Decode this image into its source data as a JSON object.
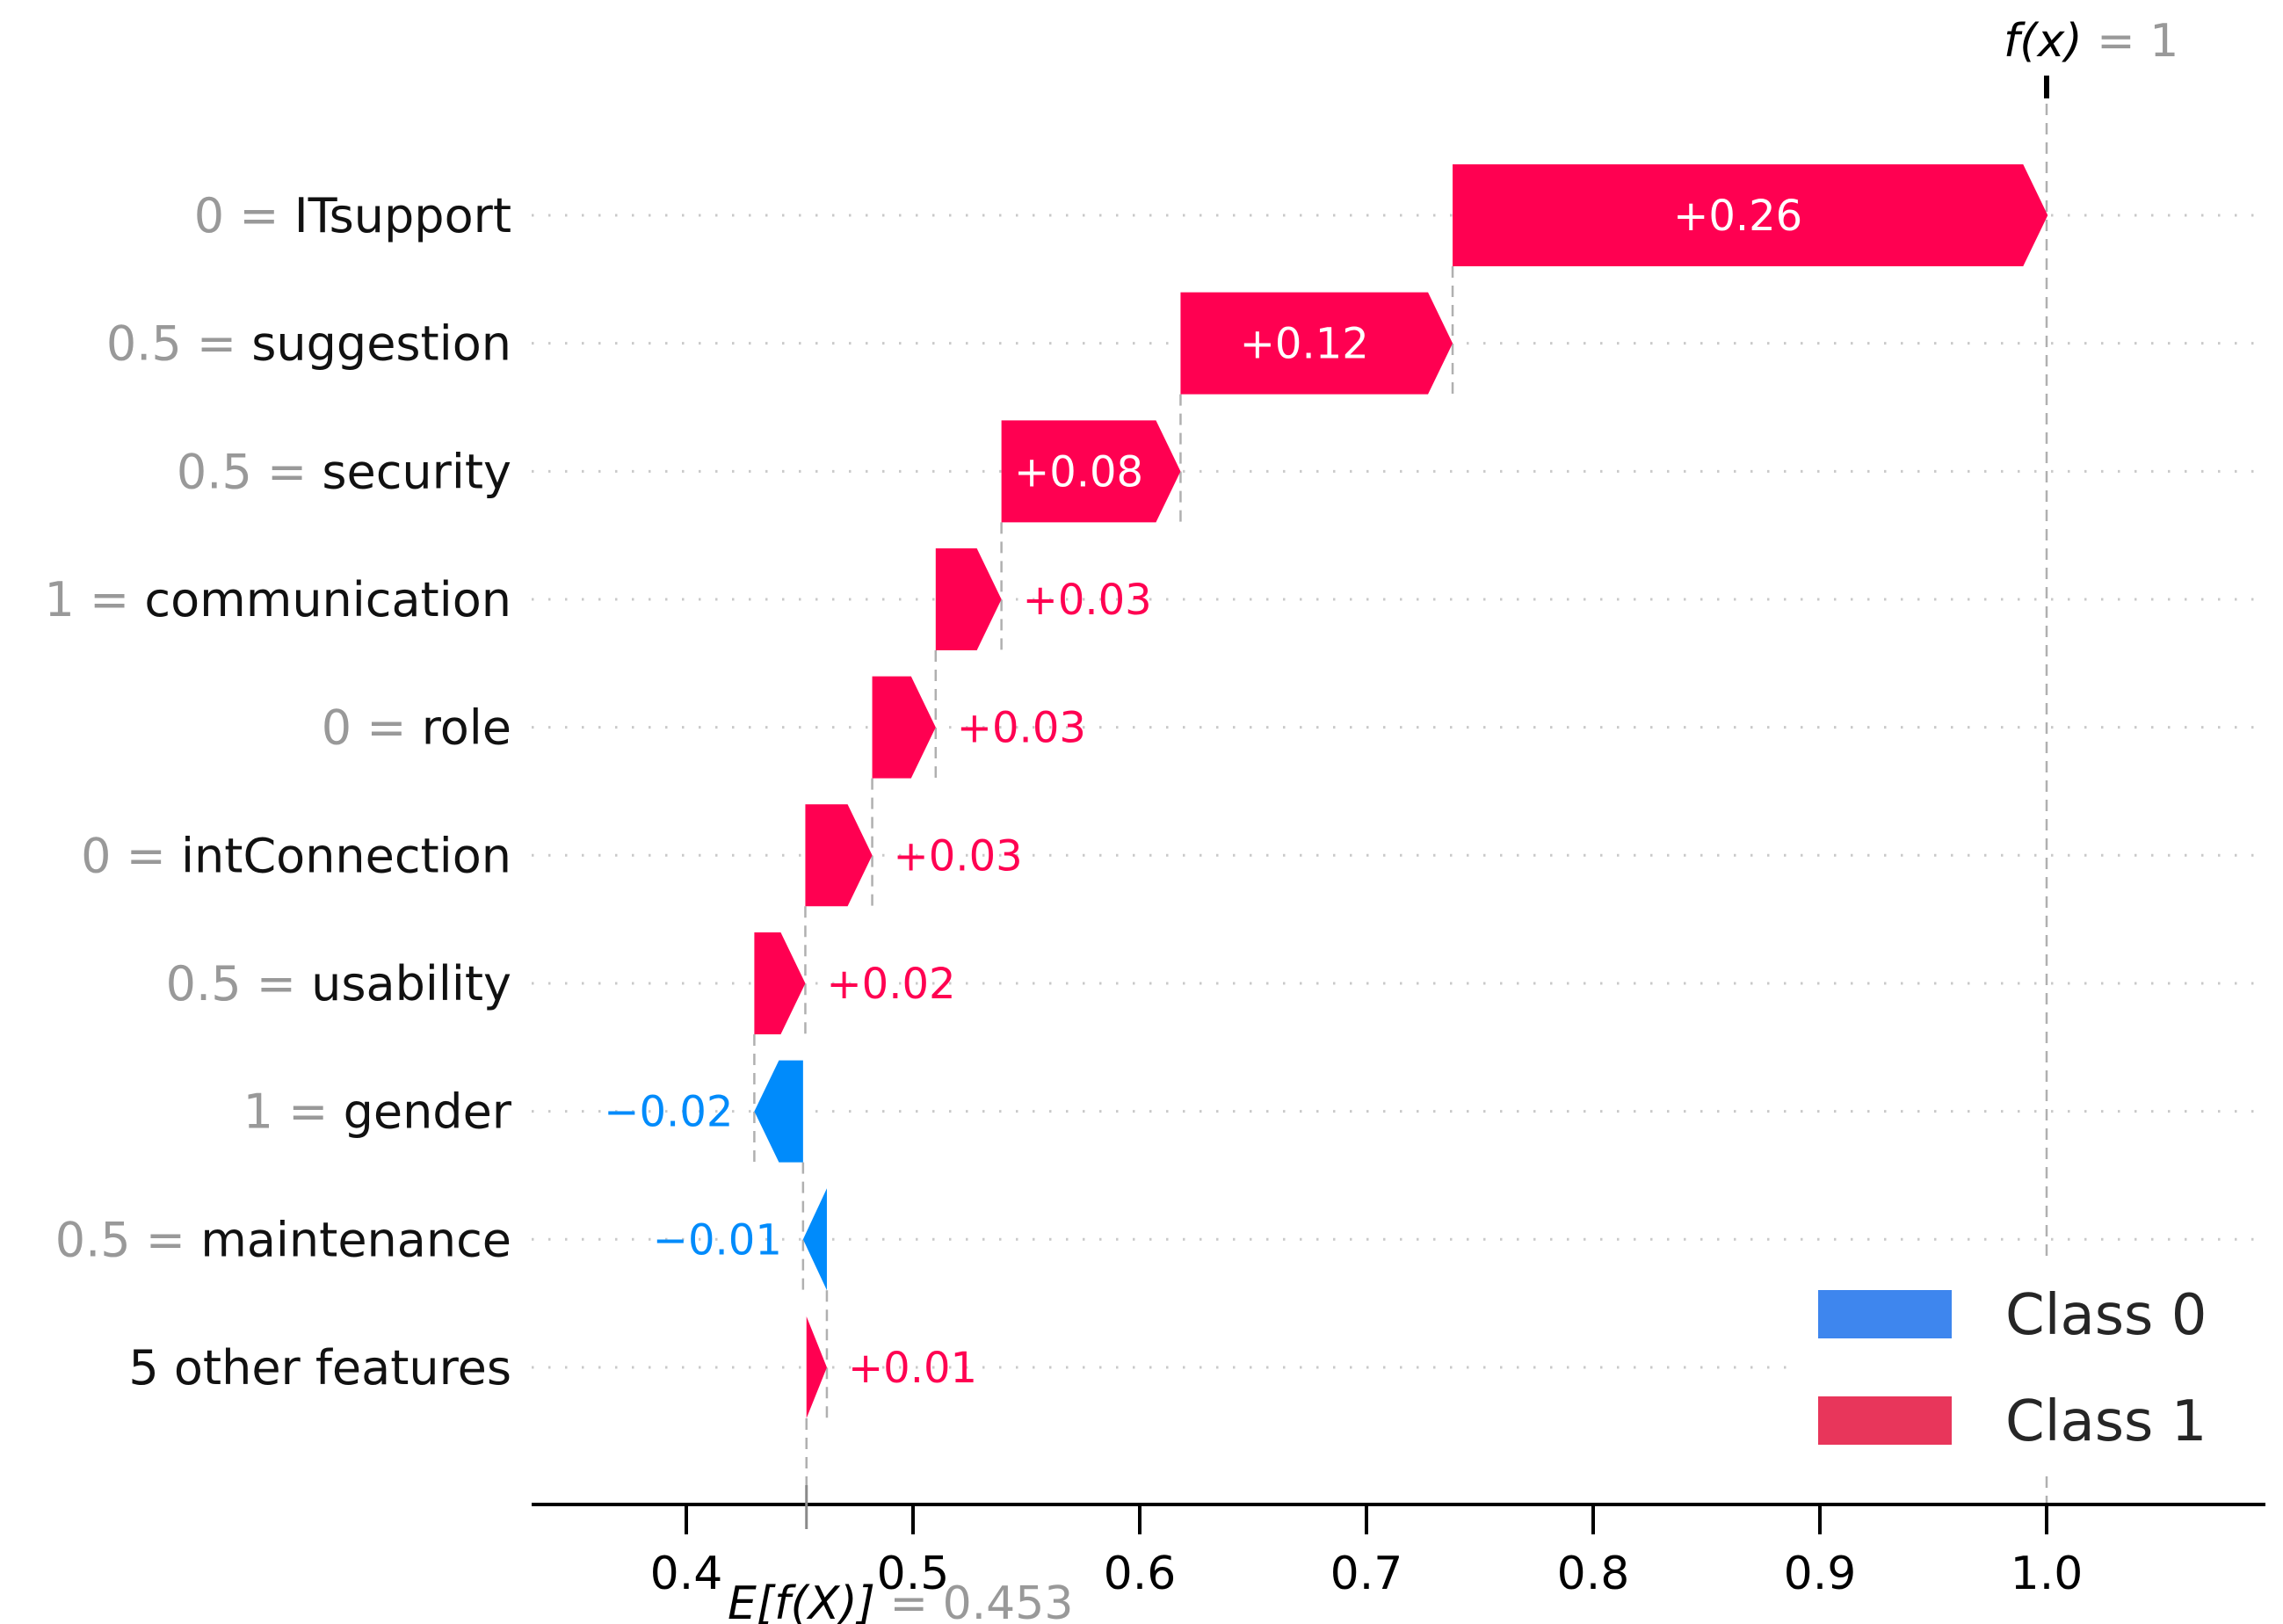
{
  "figure": {
    "background": "#ffffff"
  },
  "chart_data": {
    "type": "waterfall",
    "style": "shap-waterfall",
    "fx_annotation": {
      "italic": "f(x)",
      "rest": " = 1",
      "value": 1.0
    },
    "base_annotation": {
      "italic": "E[f(X)]",
      "rest": " = 0.453",
      "value": 0.453
    },
    "x_axis": {
      "tick_values": [
        0.4,
        0.5,
        0.6,
        0.7,
        0.8,
        0.9,
        1.0
      ],
      "tick_labels": [
        "0.4",
        "0.5",
        "0.6",
        "0.7",
        "0.8",
        "0.9",
        "1.0"
      ],
      "xlim": [
        0.332,
        1.092
      ]
    },
    "colors": {
      "positive": "#ff0051",
      "negative": "#008bfb",
      "legend_class0": "#3e86ee",
      "legend_class1": "#e8365b",
      "gray_text": "#999999",
      "feature_text": "#111111",
      "axis": "#000000",
      "dotted_gridline": "#c9c9c9",
      "dashed_connector": "#b0b0b0",
      "legend_text": "#262626"
    },
    "rows": [
      {
        "prefix": "0",
        "feature": "ITsupport",
        "label": "+0.26",
        "value": 0.26,
        "from": 0.738,
        "to": 1.0005,
        "direction": "positive"
      },
      {
        "prefix": "0.5",
        "feature": "suggestion",
        "label": "+0.12",
        "value": 0.12,
        "from": 0.618,
        "to": 0.738,
        "direction": "positive"
      },
      {
        "prefix": "0.5",
        "feature": "security",
        "label": "+0.08",
        "value": 0.08,
        "from": 0.539,
        "to": 0.618,
        "direction": "positive"
      },
      {
        "prefix": "1",
        "feature": "communication",
        "label": "+0.03",
        "value": 0.03,
        "from": 0.51,
        "to": 0.539,
        "direction": "positive"
      },
      {
        "prefix": "0",
        "feature": "role",
        "label": "+0.03",
        "value": 0.03,
        "from": 0.482,
        "to": 0.51,
        "direction": "positive"
      },
      {
        "prefix": "0",
        "feature": "intConnection",
        "label": "+0.03",
        "value": 0.03,
        "from": 0.4525,
        "to": 0.482,
        "direction": "positive"
      },
      {
        "prefix": "0.5",
        "feature": "usability",
        "label": "+0.02",
        "value": 0.02,
        "from": 0.43,
        "to": 0.4525,
        "direction": "positive"
      },
      {
        "prefix": "1",
        "feature": "gender",
        "label": "−0.02",
        "value": -0.02,
        "from": 0.4515,
        "to": 0.43,
        "direction": "negative"
      },
      {
        "prefix": "0.5",
        "feature": "maintenance",
        "label": "−0.01",
        "value": -0.01,
        "from": 0.462,
        "to": 0.4515,
        "direction": "negative"
      },
      {
        "prefix": "",
        "feature": "5 other features",
        "label": "+0.01",
        "value": 0.01,
        "from": 0.453,
        "to": 0.462,
        "direction": "positive"
      }
    ],
    "legend": {
      "items": [
        {
          "label": "Class 0",
          "color": "#3e86ee"
        },
        {
          "label": "Class 1",
          "color": "#e8365b"
        }
      ],
      "position": "lower right"
    }
  }
}
